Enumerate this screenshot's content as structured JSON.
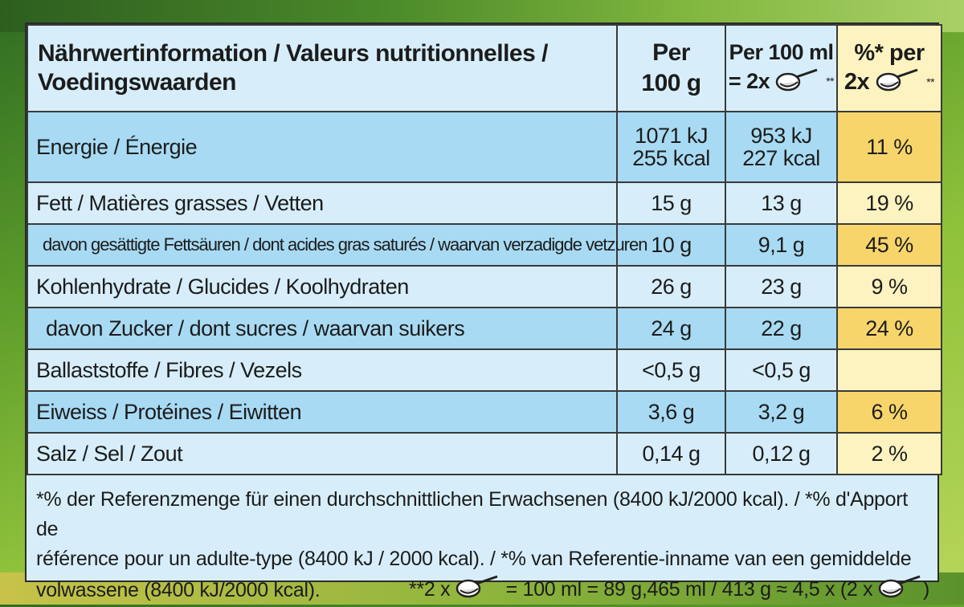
{
  "header": {
    "title_line1": "Nährwertinformation / Valeurs nutritionnelles /",
    "title_line2": "Voedingswaarden",
    "col1_line1": "Per",
    "col1_line2": "100 g",
    "col2_line1": "Per 100 ml",
    "col2_line2": "= 2x",
    "col2_stars": "**",
    "col3_line1": "%* per",
    "col3_line2": "2x",
    "col3_stars": "**"
  },
  "rows": [
    {
      "label": "Energie / Énergie",
      "per100g": "1071 kJ",
      "per100g_2": "255 kcal",
      "per100ml": "953 kJ",
      "per100ml_2": "227 kcal",
      "pct": "11 %"
    },
    {
      "label": "Fett / Matières grasses / Vetten",
      "per100g": "15 g",
      "per100ml": "13 g",
      "pct": "19 %"
    },
    {
      "label": "davon gesättigte Fettsäuren / dont acides gras saturés / waarvan verzadigde vetzuren",
      "per100g": "10 g",
      "per100ml": "9,1 g",
      "pct": "45 %"
    },
    {
      "label": "Kohlenhydrate / Glucides / Koolhydraten",
      "per100g": "26 g",
      "per100ml": "23 g",
      "pct": "9 %"
    },
    {
      "label": "davon Zucker / dont sucres / waarvan suikers",
      "per100g": "24 g",
      "per100ml": "22 g",
      "pct": "24 %"
    },
    {
      "label": "Ballaststoffe / Fibres / Vezels",
      "per100g": "<0,5 g",
      "per100ml": "<0,5 g",
      "pct": ""
    },
    {
      "label": "Eiweiss / Protéines / Eiwitten",
      "per100g": "3,6 g",
      "per100ml": "3,2 g",
      "pct": "6 %"
    },
    {
      "label": "Salz / Sel / Zout",
      "per100g": "0,14 g",
      "per100ml": "0,12 g",
      "pct": "2 %"
    }
  ],
  "footnote": {
    "line1": "*% der Referenzmenge für einen durchschnittlichen Erwachsenen (8400 kJ/2000 kcal). / *% d'Apport de",
    "line2": "référence pour un adulte-type (8400 kJ / 2000 kcal). / *% van Referentie-inname van een gemiddelde",
    "line3_left": "volwassene (8400 kJ/2000 kcal).",
    "line3_mid_prefix": "**2 x",
    "line3_mid_suffix": "= 100 ml = 89 g,465 ml / 413 g ≈ 4,5 x (2 x",
    "line3_end": ")"
  },
  "icons": {
    "spoon": "scoop-spoon-icon"
  }
}
